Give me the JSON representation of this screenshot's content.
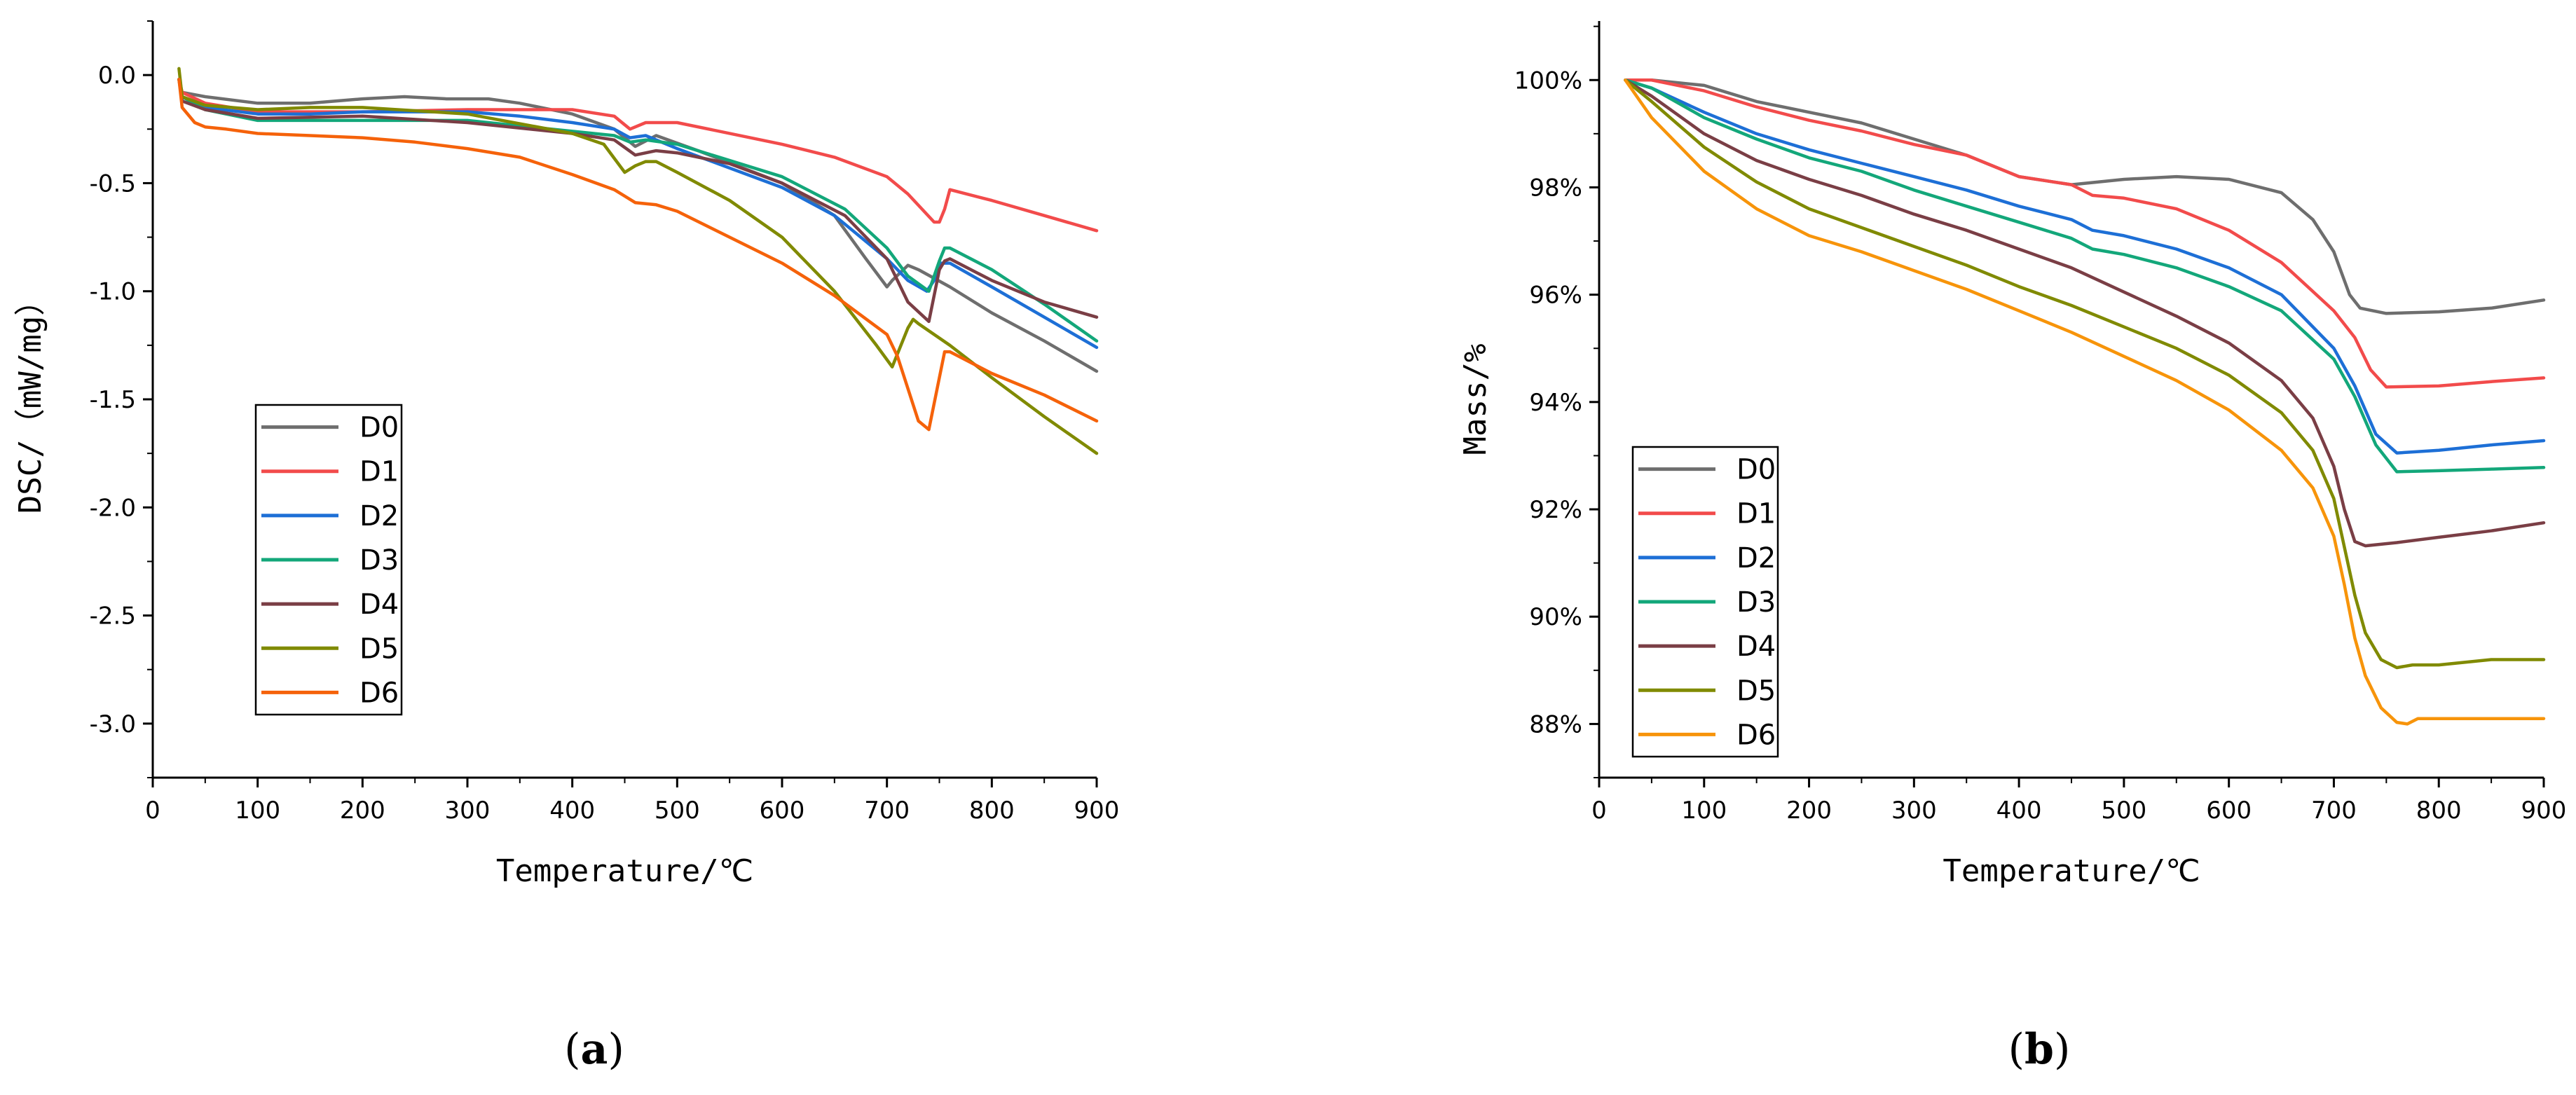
{
  "chart_data": [
    {
      "panel": "(a)",
      "panel_letter": "a",
      "type": "line",
      "xlabel": "Temperature/℃",
      "ylabel": "DSC/（mW/mg）",
      "xlim": [
        0,
        900
      ],
      "ylim": [
        -3.25,
        0.25
      ],
      "xticks": [
        0,
        100,
        200,
        300,
        400,
        500,
        600,
        700,
        800,
        900
      ],
      "xtick_labels": [
        "0",
        "100",
        "200",
        "300",
        "400",
        "500",
        "600",
        "700",
        "800",
        "900"
      ],
      "yticks": [
        0.0,
        -0.5,
        -1.0,
        -1.5,
        -2.0,
        -2.5,
        -3.0
      ],
      "ytick_labels": [
        "0.0",
        "-0.5",
        "-1.0",
        "-1.5",
        "-2.0",
        "-2.5",
        "-3.0"
      ],
      "legend_position": "lower-left",
      "series": [
        {
          "name": "D0",
          "color": "#6e6e6e",
          "x": [
            25,
            28,
            50,
            100,
            150,
            200,
            240,
            280,
            320,
            350,
            400,
            440,
            460,
            480,
            520,
            600,
            650,
            680,
            700,
            705,
            720,
            730,
            760,
            800,
            850,
            900
          ],
          "y": [
            -0.02,
            -0.08,
            -0.1,
            -0.13,
            -0.13,
            -0.11,
            -0.1,
            -0.11,
            -0.11,
            -0.13,
            -0.18,
            -0.25,
            -0.33,
            -0.28,
            -0.35,
            -0.5,
            -0.65,
            -0.85,
            -0.98,
            -0.95,
            -0.88,
            -0.9,
            -0.98,
            -1.1,
            -1.23,
            -1.37
          ]
        },
        {
          "name": "D1",
          "color": "#f24b4b",
          "x": [
            25,
            28,
            50,
            100,
            150,
            200,
            300,
            400,
            440,
            455,
            470,
            500,
            600,
            650,
            700,
            720,
            745,
            750,
            755,
            760,
            800,
            850,
            900
          ],
          "y": [
            -0.02,
            -0.08,
            -0.13,
            -0.17,
            -0.17,
            -0.17,
            -0.16,
            -0.16,
            -0.19,
            -0.25,
            -0.22,
            -0.22,
            -0.32,
            -0.38,
            -0.47,
            -0.55,
            -0.68,
            -0.68,
            -0.62,
            -0.53,
            -0.58,
            -0.65,
            -0.72
          ]
        },
        {
          "name": "D2",
          "color": "#1d6fd6",
          "x": [
            25,
            28,
            50,
            100,
            150,
            200,
            300,
            350,
            400,
            440,
            455,
            470,
            500,
            600,
            650,
            700,
            720,
            738,
            745,
            750,
            760,
            800,
            850,
            900
          ],
          "y": [
            -0.02,
            -0.1,
            -0.15,
            -0.18,
            -0.18,
            -0.17,
            -0.17,
            -0.19,
            -0.22,
            -0.25,
            -0.29,
            -0.28,
            -0.34,
            -0.52,
            -0.65,
            -0.85,
            -0.95,
            -1.0,
            -0.95,
            -0.87,
            -0.87,
            -0.98,
            -1.12,
            -1.26
          ]
        },
        {
          "name": "D3",
          "color": "#13a77a",
          "x": [
            25,
            28,
            50,
            100,
            200,
            300,
            400,
            440,
            455,
            470,
            500,
            600,
            660,
            700,
            720,
            740,
            750,
            755,
            760,
            800,
            850,
            900
          ],
          "y": [
            -0.02,
            -0.1,
            -0.16,
            -0.21,
            -0.21,
            -0.21,
            -0.26,
            -0.28,
            -0.31,
            -0.3,
            -0.32,
            -0.47,
            -0.62,
            -0.8,
            -0.93,
            -1.0,
            -0.86,
            -0.8,
            -0.8,
            -0.9,
            -1.06,
            -1.23
          ]
        },
        {
          "name": "D4",
          "color": "#7a3e45",
          "x": [
            25,
            28,
            50,
            100,
            200,
            300,
            400,
            440,
            460,
            480,
            500,
            550,
            600,
            660,
            700,
            720,
            740,
            750,
            755,
            760,
            800,
            850,
            900
          ],
          "y": [
            -0.02,
            -0.12,
            -0.16,
            -0.2,
            -0.19,
            -0.22,
            -0.27,
            -0.3,
            -0.37,
            -0.35,
            -0.36,
            -0.41,
            -0.5,
            -0.65,
            -0.85,
            -1.05,
            -1.14,
            -0.9,
            -0.86,
            -0.85,
            -0.95,
            -1.05,
            -1.12
          ]
        },
        {
          "name": "D5",
          "color": "#808a00",
          "x": [
            25,
            28,
            50,
            100,
            150,
            200,
            300,
            400,
            430,
            450,
            460,
            470,
            480,
            500,
            550,
            600,
            650,
            690,
            705,
            720,
            725,
            730,
            760,
            800,
            850,
            900
          ],
          "y": [
            0.03,
            -0.1,
            -0.14,
            -0.16,
            -0.15,
            -0.15,
            -0.18,
            -0.27,
            -0.32,
            -0.45,
            -0.42,
            -0.4,
            -0.4,
            -0.45,
            -0.58,
            -0.75,
            -1.0,
            -1.25,
            -1.35,
            -1.17,
            -1.13,
            -1.15,
            -1.25,
            -1.4,
            -1.58,
            -1.75
          ]
        },
        {
          "name": "D6",
          "color": "#f5620a",
          "x": [
            25,
            28,
            40,
            50,
            70,
            100,
            150,
            200,
            250,
            300,
            350,
            400,
            440,
            460,
            480,
            500,
            600,
            650,
            700,
            710,
            730,
            740,
            750,
            755,
            760,
            800,
            850,
            900
          ],
          "y": [
            -0.02,
            -0.15,
            -0.22,
            -0.24,
            -0.25,
            -0.27,
            -0.28,
            -0.29,
            -0.31,
            -0.34,
            -0.38,
            -0.46,
            -0.53,
            -0.59,
            -0.6,
            -0.63,
            -0.87,
            -1.02,
            -1.2,
            -1.3,
            -1.6,
            -1.64,
            -1.4,
            -1.28,
            -1.28,
            -1.38,
            -1.48,
            -1.6
          ]
        }
      ]
    },
    {
      "panel": "(b)",
      "panel_letter": "b",
      "type": "line",
      "xlabel": "Temperature/℃",
      "ylabel": "Mass/%",
      "xlim": [
        0,
        900
      ],
      "ylim": [
        87.0,
        101.1
      ],
      "xticks": [
        0,
        100,
        200,
        300,
        400,
        500,
        600,
        700,
        800,
        900
      ],
      "xtick_labels": [
        "0",
        "100",
        "200",
        "300",
        "400",
        "500",
        "600",
        "700",
        "800",
        "900"
      ],
      "yticks": [
        100,
        98,
        96,
        94,
        92,
        90,
        88
      ],
      "ytick_labels": [
        "100%",
        "98%",
        "96%",
        "94%",
        "92%",
        "90%",
        "88%"
      ],
      "legend_position": "lower-left",
      "series": [
        {
          "name": "D0",
          "color": "#6e6e6e",
          "x": [
            25,
            50,
            100,
            150,
            200,
            250,
            300,
            350,
            400,
            450,
            500,
            550,
            600,
            650,
            680,
            700,
            715,
            725,
            750,
            800,
            850,
            900
          ],
          "y": [
            100.0,
            100.0,
            99.9,
            99.6,
            99.4,
            99.2,
            98.9,
            98.6,
            98.2,
            98.05,
            98.15,
            98.2,
            98.15,
            97.9,
            97.4,
            96.8,
            96.0,
            95.75,
            95.65,
            95.68,
            95.75,
            95.9
          ]
        },
        {
          "name": "D1",
          "color": "#f24b4b",
          "x": [
            25,
            50,
            100,
            150,
            200,
            250,
            300,
            350,
            400,
            450,
            470,
            500,
            550,
            600,
            650,
            700,
            720,
            735,
            750,
            800,
            850,
            900
          ],
          "y": [
            100.0,
            100.0,
            99.8,
            99.5,
            99.25,
            99.05,
            98.8,
            98.6,
            98.2,
            98.05,
            97.85,
            97.8,
            97.6,
            97.2,
            96.6,
            95.7,
            95.2,
            94.6,
            94.28,
            94.3,
            94.38,
            94.45
          ]
        },
        {
          "name": "D2",
          "color": "#1d6fd6",
          "x": [
            25,
            50,
            100,
            150,
            200,
            250,
            300,
            350,
            400,
            450,
            470,
            500,
            550,
            600,
            650,
            700,
            720,
            740,
            760,
            800,
            850,
            900
          ],
          "y": [
            100.0,
            99.85,
            99.4,
            99.0,
            98.7,
            98.45,
            98.2,
            97.95,
            97.65,
            97.4,
            97.2,
            97.1,
            96.85,
            96.5,
            96.0,
            95.0,
            94.3,
            93.4,
            93.05,
            93.1,
            93.2,
            93.28
          ]
        },
        {
          "name": "D3",
          "color": "#13a77a",
          "x": [
            25,
            50,
            100,
            150,
            200,
            250,
            300,
            350,
            400,
            450,
            470,
            500,
            550,
            600,
            650,
            700,
            720,
            740,
            760,
            800,
            850,
            900
          ],
          "y": [
            100.0,
            99.85,
            99.3,
            98.9,
            98.55,
            98.3,
            97.95,
            97.65,
            97.35,
            97.05,
            96.85,
            96.75,
            96.5,
            96.15,
            95.7,
            94.8,
            94.1,
            93.2,
            92.7,
            92.72,
            92.75,
            92.78
          ]
        },
        {
          "name": "D4",
          "color": "#7a3e45",
          "x": [
            25,
            50,
            100,
            150,
            200,
            250,
            300,
            350,
            400,
            450,
            500,
            550,
            600,
            650,
            680,
            700,
            710,
            720,
            730,
            760,
            800,
            850,
            900
          ],
          "y": [
            100.0,
            99.7,
            99.0,
            98.5,
            98.15,
            97.85,
            97.5,
            97.2,
            96.85,
            96.5,
            96.05,
            95.6,
            95.1,
            94.4,
            93.7,
            92.8,
            92.0,
            91.4,
            91.32,
            91.38,
            91.48,
            91.6,
            91.75
          ]
        },
        {
          "name": "D5",
          "color": "#808a00",
          "x": [
            25,
            50,
            100,
            150,
            200,
            250,
            300,
            350,
            400,
            450,
            500,
            550,
            600,
            650,
            680,
            700,
            710,
            720,
            730,
            745,
            760,
            775,
            800,
            850,
            900
          ],
          "y": [
            100.0,
            99.6,
            98.75,
            98.1,
            97.6,
            97.25,
            96.9,
            96.55,
            96.15,
            95.8,
            95.4,
            95.0,
            94.5,
            93.8,
            93.1,
            92.2,
            91.3,
            90.4,
            89.7,
            89.2,
            89.05,
            89.1,
            89.1,
            89.2,
            89.2
          ]
        },
        {
          "name": "D6",
          "color": "#f7940a",
          "x": [
            25,
            50,
            100,
            150,
            200,
            250,
            300,
            350,
            400,
            450,
            500,
            550,
            600,
            650,
            680,
            700,
            710,
            720,
            730,
            745,
            760,
            770,
            780,
            800,
            850,
            900
          ],
          "y": [
            100.0,
            99.3,
            98.3,
            97.6,
            97.1,
            96.8,
            96.45,
            96.1,
            95.7,
            95.3,
            94.85,
            94.4,
            93.85,
            93.1,
            92.4,
            91.5,
            90.6,
            89.6,
            88.9,
            88.3,
            88.03,
            88.0,
            88.1,
            88.1,
            88.1,
            88.1
          ]
        }
      ]
    }
  ]
}
